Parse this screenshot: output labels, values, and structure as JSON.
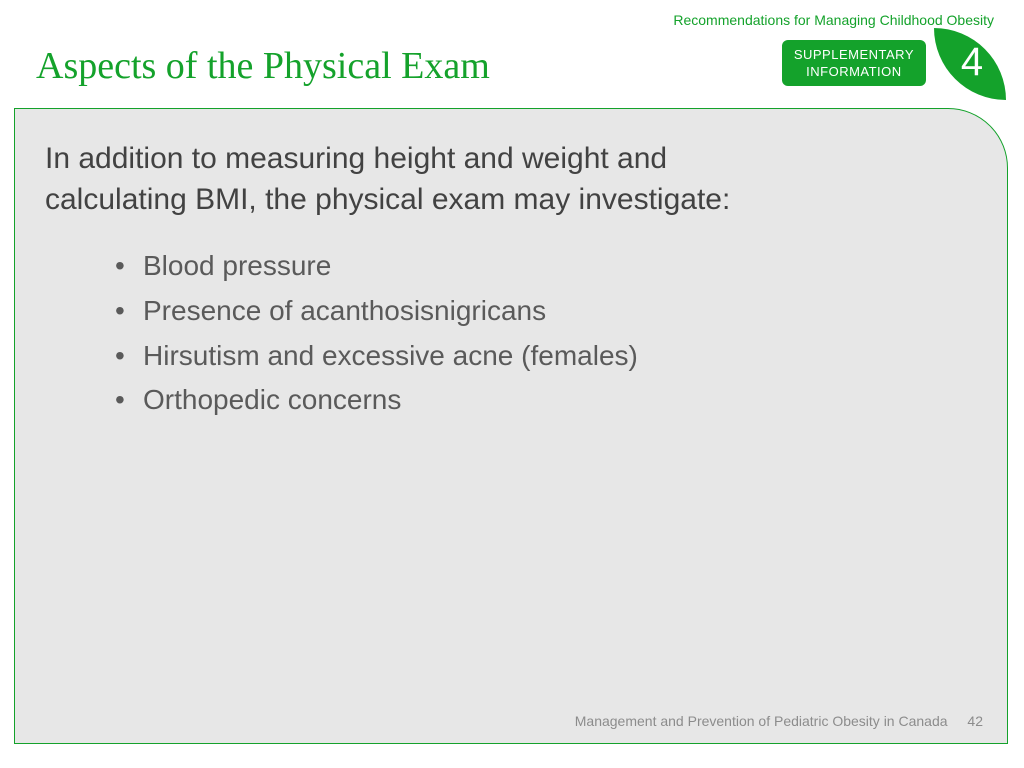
{
  "header": {
    "subtitle": "Recommendations for Managing Childhood Obesity",
    "title": "Aspects of the Physical Exam",
    "badge_line1": "SUPPLEMENTARY",
    "badge_line2": "INFORMATION",
    "badge_number": "4"
  },
  "content": {
    "lead": "In addition to measuring height and weight and calculating BMI, the physical exam may investigate:",
    "bullets": [
      "Blood pressure",
      "Presence of acanthosisnigricans",
      "Hirsutism and excessive acne (females)",
      "Orthopedic concerns"
    ]
  },
  "footer": {
    "text": "Management and Prevention of Pediatric Obesity in Canada",
    "page": "42"
  },
  "style": {
    "accent_color": "#14a22b",
    "content_bg": "#e7e7e7",
    "text_color": "#424242",
    "bullet_color": "#5a5a5a",
    "footer_color": "#8c8c8c",
    "title_font": "Georgia, serif",
    "body_font": "Arial, sans-serif",
    "title_fontsize": 38,
    "lead_fontsize": 30,
    "bullet_fontsize": 28,
    "footer_fontsize": 14
  }
}
